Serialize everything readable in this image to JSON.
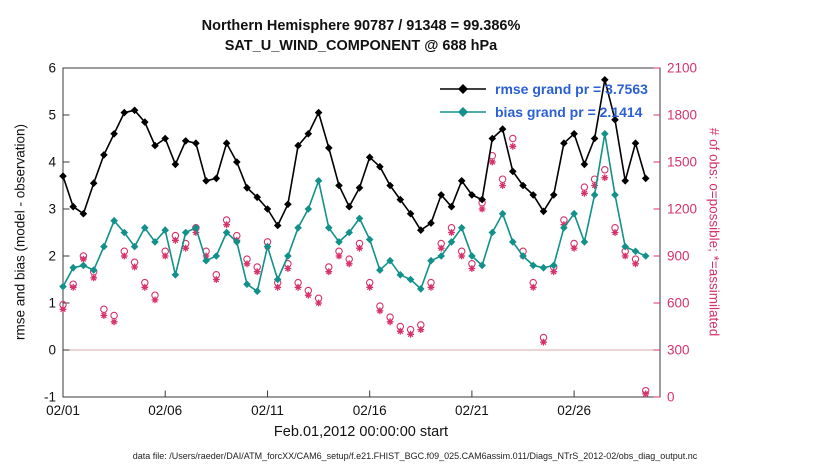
{
  "header": {
    "title_line1": "Northern Hemisphere 90787 / 91348 = 99.386%",
    "title_line2": "SAT_U_WIND_COMPONENT @ 688 hPa"
  },
  "footer": {
    "data_file_note": "data file: /Users/raeder/DAI/ATM_forcXX/CAM6_setup/f.e21.FHIST_BGC.f09_025.CAM6assim.011/Diags_NTrS_2012-02/obs_diag_output.nc"
  },
  "colors": {
    "rmse": "#000000",
    "bias": "#12918a",
    "obs": "#d6336c",
    "legend_text": "#2b5fd4",
    "zero_line": "#d8a7ad",
    "axis_box": "#3a3a3a",
    "tick_text": "#111111",
    "background": "#ffffff"
  },
  "chart_data": {
    "type": "line",
    "title": "Northern Hemisphere 90787 / 91348 = 99.386%",
    "subtitle": "SAT_U_WIND_COMPONENT @ 688 hPa",
    "xlabel": "Feb.01,2012 00:00:00 start",
    "ylabel_left": "rmse and bias (model - observation)",
    "ylabel_right": "# of obs: o=possible; *=assimilated",
    "xlim": [
      1,
      30.2
    ],
    "ylim_left": [
      -1,
      6
    ],
    "ylim_right": [
      0,
      2100
    ],
    "grid": false,
    "zero_line_left_value": 0,
    "x_ticks": [
      {
        "day": 1,
        "label": "02/01"
      },
      {
        "day": 6,
        "label": "02/06"
      },
      {
        "day": 11,
        "label": "02/11"
      },
      {
        "day": 16,
        "label": "02/16"
      },
      {
        "day": 21,
        "label": "02/21"
      },
      {
        "day": 26,
        "label": "02/26"
      }
    ],
    "y_ticks_left": [
      -1,
      0,
      1,
      2,
      3,
      4,
      5,
      6
    ],
    "y_ticks_right": [
      0,
      300,
      600,
      900,
      1200,
      1500,
      1800,
      2100
    ],
    "x": [
      1,
      1.5,
      2,
      2.5,
      3,
      3.5,
      4,
      4.5,
      5,
      5.5,
      6,
      6.5,
      7,
      7.5,
      8,
      8.5,
      9,
      9.5,
      10,
      10.5,
      11,
      11.5,
      12,
      12.5,
      13,
      13.5,
      14,
      14.5,
      15,
      15.5,
      16,
      16.5,
      17,
      17.5,
      18,
      18.5,
      19,
      19.5,
      20,
      20.5,
      21,
      21.5,
      22,
      22.5,
      23,
      23.5,
      24,
      24.5,
      25,
      25.5,
      26,
      26.5,
      27,
      27.5,
      28,
      28.5,
      29,
      29.5
    ],
    "series": [
      {
        "name": "obs_possible",
        "label": "o=possible",
        "axis": "right",
        "marker": "circle",
        "line": false,
        "color": "#d6336c",
        "values": [
          590,
          720,
          900,
          800,
          560,
          520,
          930,
          860,
          730,
          650,
          930,
          1030,
          980,
          1080,
          930,
          780,
          1130,
          1030,
          880,
          830,
          990,
          730,
          850,
          730,
          680,
          630,
          830,
          930,
          880,
          980,
          730,
          580,
          510,
          450,
          430,
          460,
          730,
          980,
          1080,
          930,
          850,
          1240,
          1540,
          1390,
          1650,
          930,
          730,
          380,
          830,
          1130,
          980,
          1340,
          1390,
          1450,
          1080,
          930,
          880,
          40
        ]
      },
      {
        "name": "obs_assimilated",
        "label": "*=assimilated",
        "axis": "right",
        "marker": "star",
        "line": false,
        "color": "#d6336c",
        "values": [
          560,
          700,
          880,
          760,
          520,
          480,
          900,
          830,
          700,
          620,
          900,
          1000,
          950,
          1050,
          900,
          750,
          1100,
          1000,
          850,
          800,
          960,
          700,
          820,
          700,
          650,
          600,
          800,
          900,
          850,
          950,
          700,
          550,
          480,
          420,
          400,
          430,
          700,
          950,
          1050,
          900,
          820,
          1200,
          1500,
          1350,
          1600,
          900,
          700,
          350,
          800,
          1100,
          950,
          1300,
          1350,
          1400,
          1050,
          900,
          850,
          20
        ]
      },
      {
        "name": "bias",
        "label": "bias grand pr = 2.1414",
        "axis": "left",
        "marker": "diamond",
        "line": true,
        "color": "#12918a",
        "values": [
          1.35,
          1.75,
          1.8,
          1.7,
          2.2,
          2.75,
          2.5,
          2.2,
          2.6,
          2.3,
          2.55,
          1.6,
          2.5,
          2.6,
          1.9,
          2.0,
          2.5,
          2.3,
          1.4,
          1.25,
          2.2,
          1.5,
          2.0,
          2.6,
          3.0,
          3.6,
          2.6,
          2.3,
          2.5,
          2.8,
          2.35,
          1.7,
          1.9,
          1.6,
          1.5,
          1.3,
          1.9,
          2.0,
          2.3,
          2.6,
          2.0,
          1.8,
          2.5,
          2.9,
          2.3,
          2.0,
          1.8,
          1.75,
          1.8,
          2.6,
          2.9,
          2.3,
          3.3,
          4.6,
          3.3,
          2.2,
          2.1,
          2.0
        ]
      },
      {
        "name": "rmse",
        "label": "rmse grand pr = 3.7563",
        "axis": "left",
        "marker": "diamond",
        "line": true,
        "color": "#000000",
        "values": [
          3.7,
          3.05,
          2.9,
          3.55,
          4.15,
          4.6,
          5.05,
          5.1,
          4.85,
          4.35,
          4.5,
          3.95,
          4.45,
          4.4,
          3.6,
          3.65,
          4.4,
          4.0,
          3.45,
          3.25,
          3.0,
          2.65,
          3.1,
          4.35,
          4.6,
          5.05,
          4.3,
          3.5,
          3.05,
          3.45,
          4.1,
          3.9,
          3.5,
          3.2,
          2.9,
          2.55,
          2.7,
          3.3,
          3.05,
          3.6,
          3.3,
          3.2,
          4.5,
          4.7,
          3.8,
          3.5,
          3.3,
          2.95,
          3.3,
          4.4,
          4.6,
          3.95,
          4.5,
          5.75,
          4.9,
          3.6,
          4.4,
          3.65
        ]
      }
    ],
    "legend": {
      "position": "upper-right-inside",
      "text_color": "#2b5fd4",
      "entries": [
        {
          "label": "rmse grand pr = 3.7563",
          "color": "#000000"
        },
        {
          "label": "bias grand pr = 2.1414",
          "color": "#12918a"
        }
      ]
    }
  }
}
